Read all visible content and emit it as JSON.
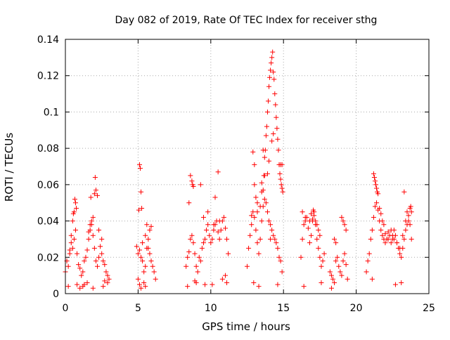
{
  "chart_data": {
    "type": "scatter",
    "title": "Day 082 of 2019, Rate Of TEC Index for receiver sthg",
    "xlabel": "GPS time / hours",
    "ylabel": "ROTI / TECUs",
    "xlim": [
      0,
      25
    ],
    "ylim": [
      0,
      0.14
    ],
    "xticks": [
      "0",
      "5",
      "10",
      "15",
      "20",
      "25"
    ],
    "yticks": [
      "0",
      "0.02",
      "0.04",
      "0.06",
      "0.08",
      "0.1",
      "0.12",
      "0.14"
    ],
    "grid": true,
    "marker": "+",
    "color": "#ff0000",
    "series": [
      {
        "name": "ROTI",
        "x": [
          0.0,
          0.1,
          0.2,
          0.3,
          0.4,
          0.5,
          0.6,
          0.7,
          0.8,
          0.9,
          1.0,
          1.1,
          1.2,
          1.3,
          1.4,
          1.5,
          1.6,
          1.7,
          1.8,
          1.9,
          2.0,
          2.1,
          2.2,
          2.3,
          2.4,
          2.5,
          2.6,
          2.7,
          2.8,
          2.9,
          3.0,
          0.65,
          0.7,
          0.75,
          0.6,
          1.7,
          1.8,
          1.9,
          2.05,
          2.1,
          2.0,
          2.2,
          0.3,
          0.4,
          0.5,
          0.55,
          1.6,
          1.75,
          2.3,
          2.5,
          0.8,
          1.2,
          1.5,
          2.7,
          2.9,
          0.2,
          1.0,
          1.3,
          2.6,
          1.9,
          4.9,
          5.0,
          5.1,
          5.2,
          5.3,
          5.4,
          5.5,
          5.6,
          5.7,
          5.8,
          5.9,
          6.0,
          6.1,
          6.2,
          5.1,
          5.15,
          5.2,
          5.25,
          5.05,
          5.3,
          5.5,
          5.6,
          5.7,
          5.8,
          5.9,
          5.4,
          5.5,
          5.0,
          5.1,
          5.2,
          8.3,
          8.4,
          8.5,
          8.6,
          8.7,
          8.8,
          8.9,
          9.0,
          9.1,
          9.2,
          9.3,
          9.4,
          9.5,
          9.6,
          9.7,
          9.8,
          9.9,
          10.0,
          10.1,
          10.2,
          10.3,
          10.4,
          10.5,
          10.6,
          10.7,
          10.8,
          10.9,
          11.0,
          11.1,
          11.2,
          8.6,
          8.7,
          8.75,
          8.8,
          8.5,
          9.3,
          10.5,
          10.3,
          10.6,
          10.2,
          9.8,
          9.5,
          9.0,
          11.0,
          10.8,
          10.1,
          8.4,
          8.9,
          9.6,
          11.1,
          12.5,
          12.6,
          12.7,
          12.8,
          12.9,
          13.0,
          13.1,
          13.2,
          13.3,
          13.4,
          13.5,
          13.6,
          13.7,
          13.8,
          13.9,
          14.0,
          14.1,
          14.2,
          14.3,
          14.4,
          14.5,
          14.6,
          14.7,
          14.8,
          14.9,
          12.9,
          13.0,
          13.0,
          13.1,
          13.2,
          13.5,
          13.6,
          13.65,
          13.7,
          13.75,
          13.8,
          13.85,
          13.9,
          13.95,
          14.0,
          14.05,
          14.1,
          14.15,
          14.2,
          14.25,
          14.3,
          14.35,
          14.4,
          14.45,
          14.5,
          14.55,
          14.6,
          14.65,
          14.7,
          14.75,
          14.8,
          14.85,
          14.9,
          14.95,
          14.9,
          14.8,
          13.6,
          13.7,
          14.2,
          14.3,
          13.4,
          13.2,
          12.8,
          13.9,
          14.0,
          13.5,
          14.1,
          12.95,
          13.3,
          14.6,
          16.2,
          16.3,
          16.4,
          16.5,
          16.6,
          16.7,
          16.8,
          16.9,
          17.0,
          17.1,
          17.2,
          17.3,
          17.4,
          17.5,
          17.6,
          17.7,
          17.8,
          18.2,
          18.3,
          18.4,
          18.5,
          18.6,
          18.7,
          18.8,
          18.9,
          19.0,
          19.1,
          19.2,
          19.3,
          19.4,
          16.3,
          16.5,
          16.8,
          16.9,
          17.0,
          17.05,
          17.1,
          17.2,
          17.3,
          17.4,
          17.5,
          18.5,
          18.6,
          19.0,
          19.1,
          19.2,
          19.3,
          16.4,
          17.6,
          18.3,
          20.7,
          20.8,
          20.9,
          21.0,
          21.1,
          21.2,
          21.3,
          21.4,
          21.5,
          21.6,
          21.7,
          21.8,
          21.9,
          22.0,
          22.1,
          22.2,
          22.3,
          22.4,
          22.5,
          22.6,
          22.7,
          22.8,
          22.9,
          23.0,
          23.1,
          23.2,
          23.3,
          23.4,
          23.5,
          23.6,
          23.7,
          23.8,
          21.2,
          21.25,
          21.3,
          21.35,
          21.4,
          21.45,
          21.5,
          21.6,
          21.7,
          21.8,
          21.9,
          22.0,
          22.2,
          22.4,
          22.5,
          22.6,
          22.8,
          23.0,
          23.2,
          23.4,
          23.6,
          23.7,
          23.75,
          23.8,
          23.3,
          23.5,
          21.1,
          22.7,
          23.1
        ],
        "y": [
          0.012,
          0.018,
          0.015,
          0.022,
          0.028,
          0.025,
          0.03,
          0.035,
          0.022,
          0.016,
          0.014,
          0.01,
          0.012,
          0.018,
          0.02,
          0.024,
          0.03,
          0.035,
          0.038,
          0.032,
          0.025,
          0.018,
          0.015,
          0.02,
          0.026,
          0.022,
          0.018,
          0.016,
          0.012,
          0.01,
          0.008,
          0.052,
          0.05,
          0.047,
          0.045,
          0.038,
          0.04,
          0.042,
          0.064,
          0.057,
          0.055,
          0.054,
          0.024,
          0.032,
          0.04,
          0.044,
          0.034,
          0.053,
          0.035,
          0.03,
          0.005,
          0.004,
          0.006,
          0.007,
          0.006,
          0.004,
          0.003,
          0.005,
          0.004,
          0.003,
          0.026,
          0.022,
          0.024,
          0.02,
          0.018,
          0.012,
          0.015,
          0.025,
          0.03,
          0.035,
          0.037,
          0.015,
          0.012,
          0.008,
          0.071,
          0.069,
          0.056,
          0.047,
          0.046,
          0.028,
          0.032,
          0.038,
          0.025,
          0.022,
          0.018,
          0.006,
          0.004,
          0.008,
          0.005,
          0.003,
          0.015,
          0.02,
          0.023,
          0.03,
          0.032,
          0.028,
          0.022,
          0.015,
          0.012,
          0.02,
          0.018,
          0.025,
          0.028,
          0.03,
          0.035,
          0.038,
          0.032,
          0.028,
          0.03,
          0.035,
          0.038,
          0.04,
          0.034,
          0.03,
          0.035,
          0.04,
          0.042,
          0.036,
          0.03,
          0.022,
          0.065,
          0.062,
          0.06,
          0.059,
          0.05,
          0.06,
          0.067,
          0.053,
          0.04,
          0.038,
          0.045,
          0.042,
          0.006,
          0.01,
          0.008,
          0.005,
          0.004,
          0.007,
          0.005,
          0.006,
          0.015,
          0.025,
          0.032,
          0.038,
          0.045,
          0.042,
          0.035,
          0.028,
          0.022,
          0.03,
          0.04,
          0.048,
          0.052,
          0.05,
          0.045,
          0.04,
          0.038,
          0.035,
          0.032,
          0.03,
          0.028,
          0.025,
          0.02,
          0.018,
          0.012,
          0.078,
          0.071,
          0.06,
          0.053,
          0.045,
          0.056,
          0.057,
          0.065,
          0.075,
          0.079,
          0.087,
          0.092,
          0.1,
          0.106,
          0.114,
          0.119,
          0.123,
          0.127,
          0.13,
          0.133,
          0.122,
          0.118,
          0.11,
          0.104,
          0.097,
          0.091,
          0.085,
          0.079,
          0.071,
          0.066,
          0.063,
          0.06,
          0.058,
          0.056,
          0.071,
          0.071,
          0.079,
          0.065,
          0.084,
          0.088,
          0.048,
          0.05,
          0.043,
          0.066,
          0.073,
          0.061,
          0.03,
          0.006,
          0.004,
          0.005,
          0.02,
          0.03,
          0.038,
          0.04,
          0.042,
          0.036,
          0.028,
          0.032,
          0.04,
          0.045,
          0.038,
          0.03,
          0.025,
          0.02,
          0.015,
          0.018,
          0.022,
          0.012,
          0.01,
          0.008,
          0.006,
          0.018,
          0.02,
          0.015,
          0.012,
          0.01,
          0.018,
          0.022,
          0.016,
          0.008,
          0.045,
          0.042,
          0.04,
          0.044,
          0.041,
          0.046,
          0.043,
          0.04,
          0.038,
          0.035,
          0.032,
          0.03,
          0.028,
          0.042,
          0.04,
          0.038,
          0.035,
          0.004,
          0.006,
          0.003,
          0.012,
          0.018,
          0.022,
          0.03,
          0.035,
          0.042,
          0.048,
          0.05,
          0.046,
          0.04,
          0.035,
          0.032,
          0.03,
          0.028,
          0.03,
          0.034,
          0.032,
          0.028,
          0.03,
          0.035,
          0.032,
          0.028,
          0.025,
          0.022,
          0.02,
          0.025,
          0.03,
          0.035,
          0.038,
          0.04,
          0.038,
          0.03,
          0.066,
          0.064,
          0.062,
          0.06,
          0.058,
          0.056,
          0.055,
          0.047,
          0.044,
          0.04,
          0.038,
          0.033,
          0.03,
          0.035,
          0.032,
          0.03,
          0.028,
          0.025,
          0.032,
          0.04,
          0.043,
          0.047,
          0.048,
          0.045,
          0.056,
          0.045,
          0.008,
          0.005,
          0.006
        ]
      }
    ]
  }
}
